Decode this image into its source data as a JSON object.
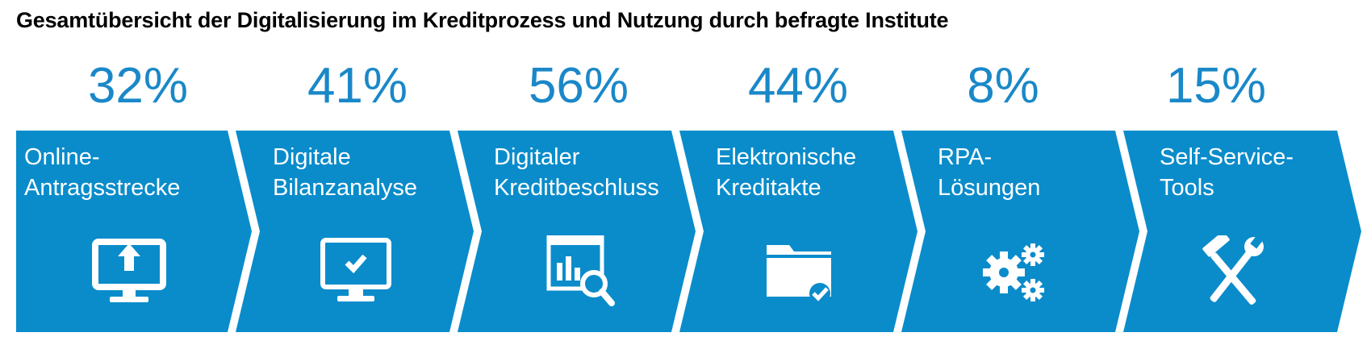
{
  "title": "Gesamtübersicht der Digitalisierung im Kreditprozess und Nutzung durch befragte Institute",
  "colors": {
    "accent": "#1a88c8",
    "chevron_fill": "#0a8ccb",
    "text_on_fill": "#ffffff"
  },
  "steps": [
    {
      "percent": "32%",
      "label_line1": "Online-",
      "label_line2": "Antragsstrecke",
      "icon": "monitor-upload-icon"
    },
    {
      "percent": "41%",
      "label_line1": "Digitale",
      "label_line2": "Bilanzanalyse",
      "icon": "monitor-check-icon"
    },
    {
      "percent": "56%",
      "label_line1": "Digitaler",
      "label_line2": "Kreditbeschluss",
      "icon": "chart-search-icon"
    },
    {
      "percent": "44%",
      "label_line1": "Elektronische",
      "label_line2": "Kreditakte",
      "icon": "folder-check-icon"
    },
    {
      "percent": "8%",
      "label_line1": "RPA-",
      "label_line2": "Lösungen",
      "icon": "gears-icon"
    },
    {
      "percent": "15%",
      "label_line1": "Self-Service-",
      "label_line2": "Tools",
      "icon": "hammer-wrench-icon"
    }
  ]
}
